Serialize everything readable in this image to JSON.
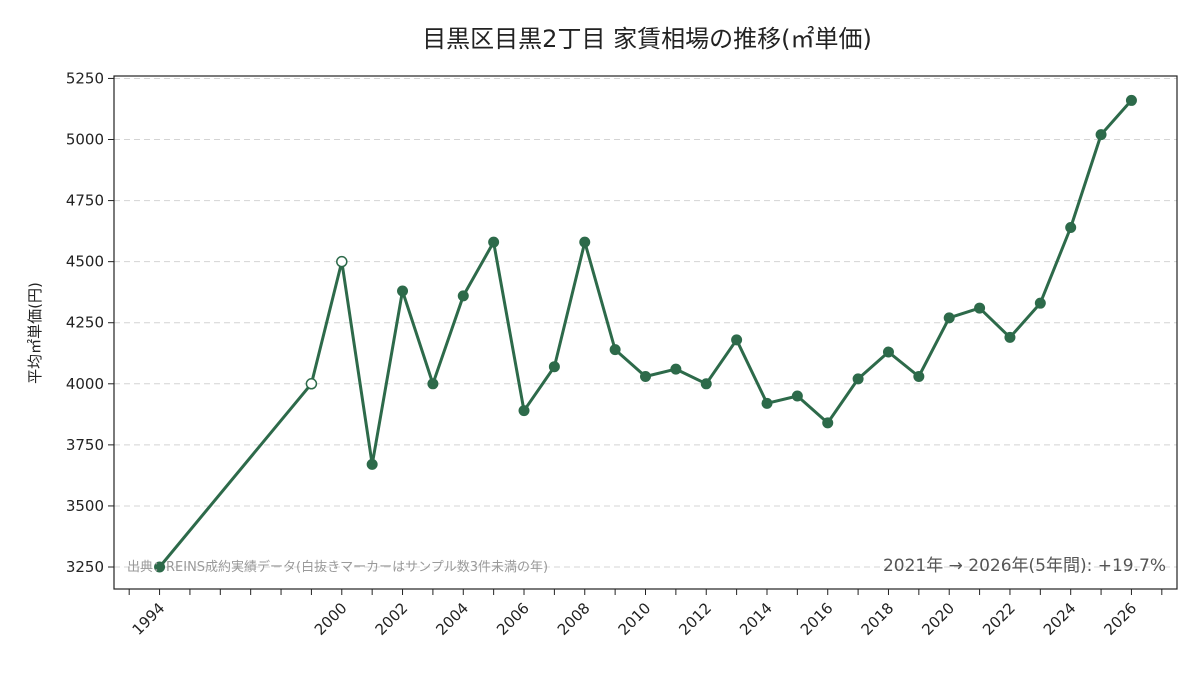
{
  "chart_data": {
    "type": "line",
    "title": "目黒区目黒2丁目 家賃相場の推移(㎡単価)",
    "ylabel": "平均㎡単価(円)",
    "xlabel": "",
    "ylim": [
      3160,
      5260
    ],
    "xlim": [
      1992.5,
      2027.5
    ],
    "yticks": [
      3250,
      3500,
      3750,
      4000,
      4250,
      4500,
      4750,
      5000,
      5250
    ],
    "xticks": [
      1994,
      2000,
      2002,
      2004,
      2006,
      2008,
      2010,
      2012,
      2014,
      2016,
      2018,
      2020,
      2022,
      2024,
      2026
    ],
    "grid": "y-dashed",
    "color": "#2d6a4a",
    "series": [
      {
        "x": [
          1994,
          1999,
          2000,
          2001,
          2002,
          2003,
          2004,
          2005,
          2006,
          2007,
          2008,
          2009,
          2010,
          2011,
          2012,
          2013,
          2014,
          2015,
          2016,
          2017,
          2018,
          2019,
          2020,
          2021,
          2022,
          2023,
          2024,
          2025,
          2026
        ],
        "values": [
          3250,
          4000,
          4500,
          3670,
          4380,
          4000,
          4360,
          4580,
          3890,
          4070,
          4580,
          4140,
          4030,
          4060,
          4000,
          4180,
          3920,
          3950,
          3840,
          4020,
          4130,
          4030,
          4270,
          4310,
          4190,
          4330,
          4640,
          5020,
          5160
        ],
        "hollow_x": [
          1999,
          2000
        ]
      }
    ],
    "annotations": {
      "source": "出典：REINS成約実績データ(白抜きマーカーはサンプル数3件未満の年)",
      "change": "2021年 → 2026年(5年間): +19.7%"
    }
  }
}
